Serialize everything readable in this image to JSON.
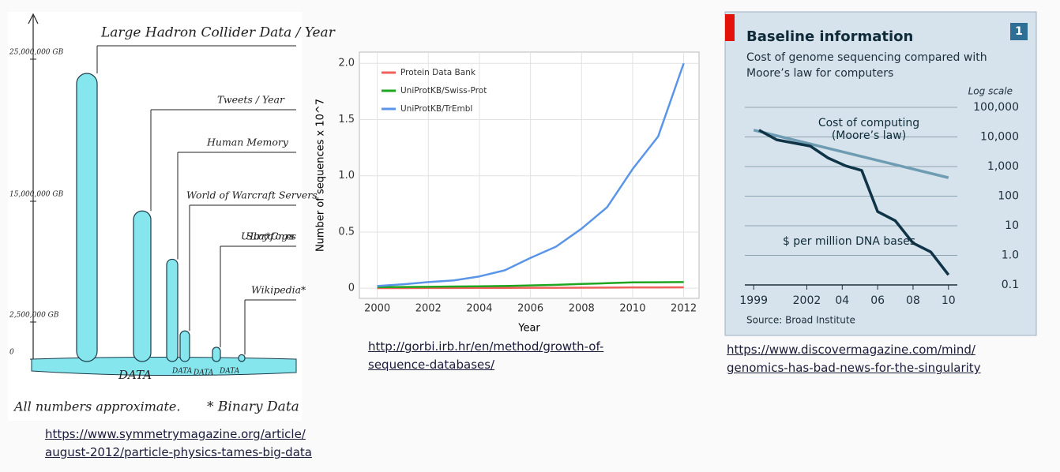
{
  "chart_data": [
    {
      "type": "bar",
      "categories": [
        "Large Hadron Collider Data / Year",
        "Tweets / Year",
        "Human Memory",
        "World of Warcraft Servers",
        "US Library * of Congress",
        "Wikipedia*"
      ],
      "values": [
        24000000,
        14000000,
        9000000,
        1900000,
        800000,
        300000
      ],
      "color": "#86e6ee",
      "ylim": [
        0,
        28000000
      ],
      "yticks": [
        0,
        {
          "value": 2500000,
          "label": "2,500,000 GB"
        },
        {
          "value": 15000000,
          "label": "15,000,000 GB"
        },
        {
          "value": 25000000,
          "label": "25,000,000 GB"
        }
      ],
      "annotations": [
        "DATA",
        "DATA",
        "DATA",
        "DATA",
        "All numbers approximate.",
        "* Binary Data"
      ]
    },
    {
      "type": "line",
      "x": [
        2000,
        2001,
        2002,
        2003,
        2004,
        2005,
        2006,
        2007,
        2008,
        2009,
        2010,
        2011,
        2012
      ],
      "series": [
        {
          "name": "Protein Data Bank",
          "color": "#f0615c",
          "values": [
            0.001,
            0.001,
            0.002,
            0.002,
            0.003,
            0.003,
            0.004,
            0.004,
            0.005,
            0.006,
            0.007,
            0.007,
            0.008
          ]
        },
        {
          "name": "UniProtKB/Swiss-Prot",
          "color": "#1fa51f",
          "values": [
            0.01,
            0.011,
            0.013,
            0.015,
            0.017,
            0.02,
            0.025,
            0.03,
            0.038,
            0.045,
            0.052,
            0.053,
            0.055
          ]
        },
        {
          "name": "UniProtKB/TrEmbl",
          "color": "#5a95e8",
          "values": [
            0.02,
            0.035,
            0.055,
            0.07,
            0.105,
            0.16,
            0.27,
            0.37,
            0.53,
            0.72,
            1.06,
            1.35,
            2.0
          ]
        }
      ],
      "xlim": [
        1999.3,
        2012.6
      ],
      "ylim": [
        -0.09,
        2.1
      ],
      "xticks": [
        2000,
        2002,
        2004,
        2006,
        2008,
        2010,
        2012
      ],
      "yticks": [
        0,
        0.5,
        {
          "value": 1,
          "label": "1.0"
        },
        1.5,
        {
          "value": 2,
          "label": "2.0"
        }
      ],
      "xlabel": "Year",
      "ylabel": "Number of sequences x 10^7",
      "grid": true,
      "legend": "upper left"
    },
    {
      "type": "line",
      "log_scale": true,
      "title": "Baseline information",
      "subtitle": "Cost of genome sequencing compared with Moore’s law for computers",
      "badge": "1",
      "scale_note": "Log scale",
      "source": "Source: Broad Institute",
      "series": [
        {
          "name": "Cost of computing (Moore’s law)",
          "color": "#6e9cb2",
          "x": [
            1999,
            2010
          ],
          "values": [
            17000,
            420
          ]
        },
        {
          "name": "$ per million DNA bases",
          "color": "#0f3447",
          "x": [
            1999.3,
            2000.3,
            2002.2,
            2003.2,
            2004.2,
            2005.1,
            2006,
            2007,
            2008,
            2009,
            2010
          ],
          "values": [
            17000,
            8000,
            4900,
            1950,
            1050,
            740,
            30,
            14.7,
            2.6,
            1.3,
            0.22
          ]
        }
      ],
      "xlim": [
        1998.5,
        2010.5
      ],
      "ylim": [
        0.1,
        100000
      ],
      "xticks": [
        1999,
        2002,
        {
          "value": 2004,
          "label": "04"
        },
        {
          "value": 2006,
          "label": "06"
        },
        {
          "value": 2008,
          "label": "08"
        },
        {
          "value": 2010,
          "label": "10"
        }
      ],
      "yticks": [
        0.1,
        {
          "value": 1,
          "label": "1.0"
        },
        10,
        100,
        {
          "value": 1000,
          "label": "1,000"
        },
        {
          "value": 10000,
          "label": "10,000"
        },
        {
          "value": 100000,
          "label": "100,000"
        }
      ],
      "grid": true
    }
  ],
  "links": [
    {
      "lines": [
        "https://www.symmetrymagazine.org/article/",
        "august-2012/particle-physics-tames-big-data"
      ]
    },
    {
      "lines": [
        "http://gorbi.irb.hr/en/method/growth-of-",
        "sequence-databases/"
      ]
    },
    {
      "lines": [
        "https://www.discovermagazine.com/mind/",
        "genomics-has-bad-news-for-the-singularity"
      ]
    }
  ]
}
